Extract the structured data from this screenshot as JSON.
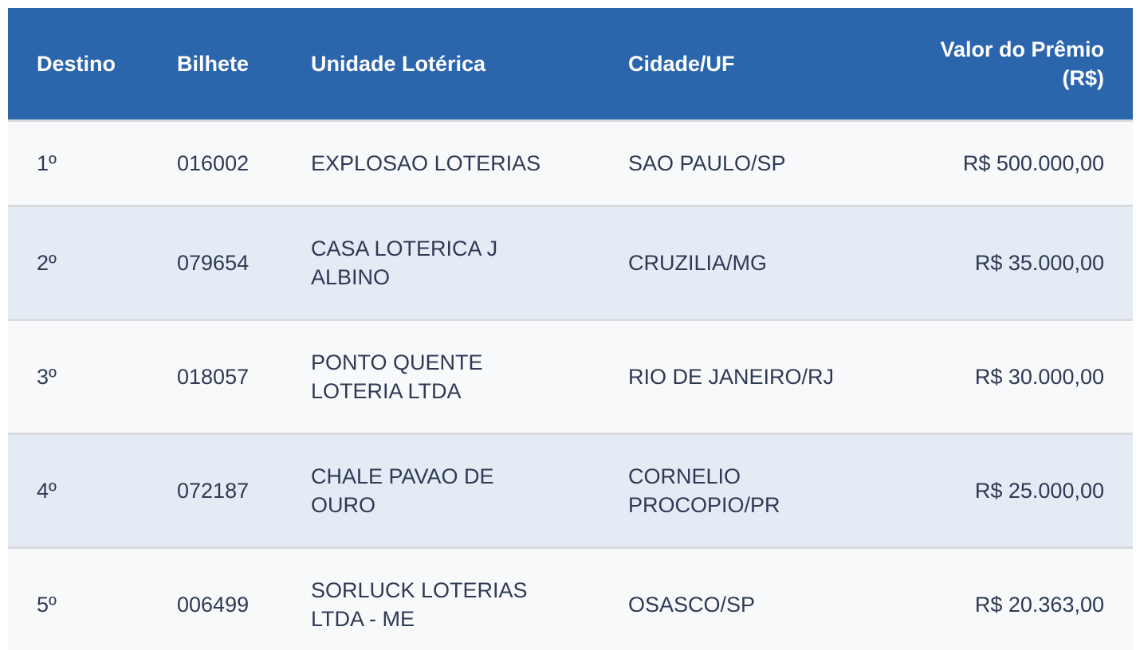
{
  "colors": {
    "header_bg": "#2b66ad",
    "header_text": "#ffffff",
    "row_odd_bg": "#f8f9fa",
    "row_even_bg": "#e4ebf5",
    "divider": "#d9dbde",
    "cell_text": "#2e3a54"
  },
  "table": {
    "columns": [
      {
        "key": "destino",
        "label": "Destino"
      },
      {
        "key": "bilhete",
        "label": "Bilhete"
      },
      {
        "key": "unidade",
        "label": "Unidade Lotérica"
      },
      {
        "key": "cidade",
        "label": "Cidade/UF"
      },
      {
        "key": "valor",
        "label": "Valor do Prêmio\n(R$)"
      }
    ],
    "rows": [
      {
        "destino": "1º",
        "bilhete": "016002",
        "unidade": "EXPLOSAO LOTERIAS",
        "cidade": "SAO PAULO/SP",
        "valor": "R$ 500.000,00"
      },
      {
        "destino": "2º",
        "bilhete": "079654",
        "unidade": "CASA LOTERICA J\nALBINO",
        "cidade": "CRUZILIA/MG",
        "valor": "R$ 35.000,00"
      },
      {
        "destino": "3º",
        "bilhete": "018057",
        "unidade": "PONTO QUENTE\nLOTERIA LTDA",
        "cidade": "RIO DE JANEIRO/RJ",
        "valor": "R$ 30.000,00"
      },
      {
        "destino": "4º",
        "bilhete": "072187",
        "unidade": "CHALE PAVAO DE\nOURO",
        "cidade": "CORNELIO\nPROCOPIO/PR",
        "valor": "R$ 25.000,00"
      },
      {
        "destino": "5º",
        "bilhete": "006499",
        "unidade": "SORLUCK LOTERIAS\nLTDA - ME",
        "cidade": "OSASCO/SP",
        "valor": "R$ 20.363,00"
      }
    ]
  }
}
